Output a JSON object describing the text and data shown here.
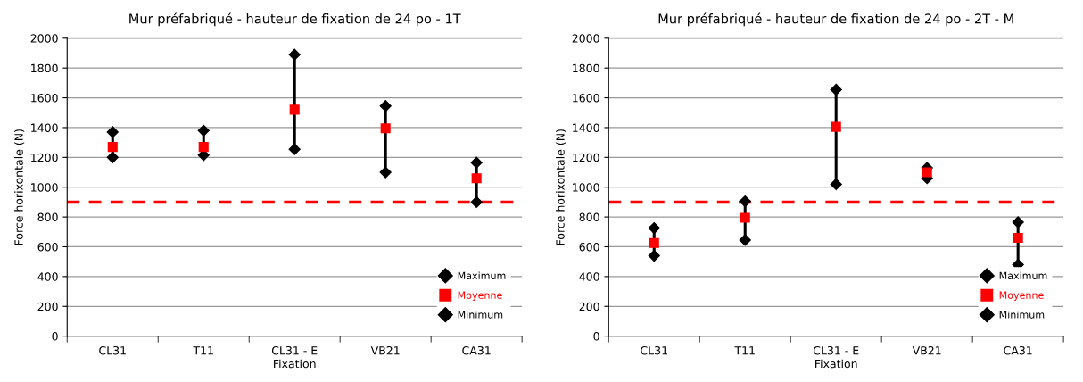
{
  "chart_data": [
    {
      "type": "scatter",
      "title": "Mur préfabriqué - hauteur de fixation de 24 po - 1T",
      "xlabel": "Fixation",
      "ylabel": "Force horixontale (N)",
      "categories": [
        "CL31",
        "T11",
        "CL31 - E",
        "VB21",
        "CA31"
      ],
      "series": [
        {
          "name": "Maximum",
          "color": "#000000",
          "marker": "diamond",
          "values": [
            1370,
            1380,
            1890,
            1545,
            1165
          ]
        },
        {
          "name": "Moyenne",
          "color": "#ff0000",
          "marker": "square",
          "values": [
            1270,
            1270,
            1520,
            1395,
            1060
          ]
        },
        {
          "name": "Minimum",
          "color": "#000000",
          "marker": "diamond",
          "values": [
            1200,
            1215,
            1255,
            1100,
            900
          ]
        }
      ],
      "ylim": [
        0,
        2000
      ],
      "yticks": [
        0,
        200,
        400,
        600,
        800,
        1000,
        1200,
        1400,
        1600,
        1800,
        2000
      ],
      "grid": "y",
      "legend": "bottom right",
      "ref_lines": [
        {
          "axis": "y",
          "value": 900,
          "color": "#ff0000",
          "line_style": "dashed"
        }
      ]
    },
    {
      "type": "scatter",
      "title": "Mur préfabriqué - hauteur de fixation de 24 po - 2T - M",
      "xlabel": "Fixation",
      "ylabel": "Force horixontale (N)",
      "categories": [
        "CL31",
        "T11",
        "CL31 - E",
        "VB21",
        "CA31"
      ],
      "series": [
        {
          "name": "Maximum",
          "color": "#000000",
          "marker": "diamond",
          "values": [
            725,
            905,
            1655,
            1130,
            765
          ]
        },
        {
          "name": "Moyenne",
          "color": "#ff0000",
          "marker": "square",
          "values": [
            625,
            795,
            1405,
            1100,
            660
          ]
        },
        {
          "name": "Minimum",
          "color": "#000000",
          "marker": "diamond",
          "values": [
            540,
            645,
            1020,
            1060,
            480
          ]
        }
      ],
      "ylim": [
        0,
        2000
      ],
      "yticks": [
        0,
        200,
        400,
        600,
        800,
        1000,
        1200,
        1400,
        1600,
        1800,
        2000
      ],
      "grid": "y",
      "legend": "bottom right",
      "ref_lines": [
        {
          "axis": "y",
          "value": 900,
          "color": "#ff0000",
          "line_style": "dashed"
        }
      ]
    }
  ]
}
